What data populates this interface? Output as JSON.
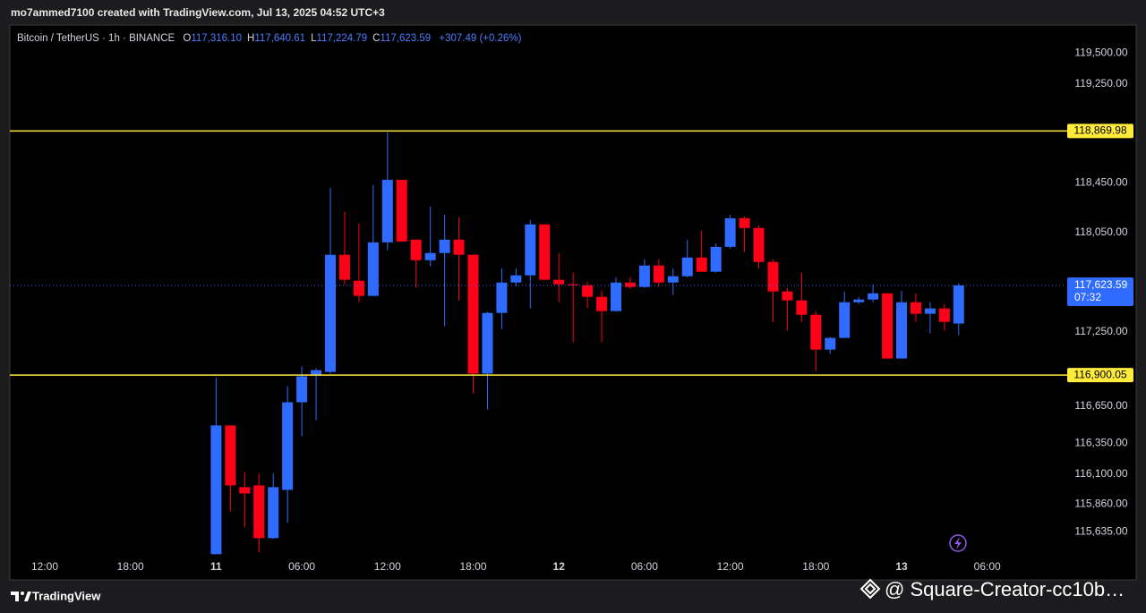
{
  "chart_data": {
    "type": "candlestick",
    "snapshot_caption": "mo7ammed7100 created with TradingView.com, Jul 13, 2025 04:52 UTC+3",
    "title": "Bitcoin / TetherUS · 1h · BINANCE",
    "ohlc_legend": [
      {
        "key": "O",
        "text": "117,316.10"
      },
      {
        "key": "H",
        "text": "117,640.61"
      },
      {
        "key": "L",
        "text": "117,224.79"
      },
      {
        "key": "C",
        "text": "117,623.59"
      }
    ],
    "change": "+307.49 (+0.26%)",
    "brand": "TradingView",
    "watermark": "@ Square-Creator-cc10b…",
    "up_color": "#2f6bff",
    "down_color": "#ff0019",
    "categories": [
      "12:00",
      null,
      null,
      null,
      null,
      null,
      "18:00",
      null,
      null,
      null,
      null,
      null,
      "11",
      null,
      null,
      null,
      null,
      null,
      "06:00",
      null,
      null,
      null,
      null,
      null,
      "12:00",
      null,
      null,
      null,
      null,
      null,
      "18:00",
      null,
      null,
      null,
      null,
      null,
      "12",
      null,
      null,
      null,
      null,
      null,
      "06:00",
      null,
      null,
      null,
      null,
      null,
      "12:00",
      null,
      null,
      null,
      null,
      null,
      "18:00",
      null,
      null,
      null,
      null,
      null,
      "13",
      null,
      null,
      null,
      null,
      null,
      "06:00"
    ],
    "open": [
      null,
      null,
      null,
      null,
      null,
      null,
      null,
      null,
      null,
      null,
      null,
      null,
      115455,
      116494,
      115996,
      116010,
      115585,
      115974,
      116681,
      116897,
      116926,
      117871,
      117661,
      117539,
      117971,
      118476,
      117993,
      117827,
      117885,
      117993,
      117871,
      116912,
      117402,
      117647,
      117705,
      118116,
      117669,
      117633,
      117625,
      117532,
      117416,
      117647,
      117611,
      117784,
      117647,
      117698,
      117849,
      117734,
      117935,
      118166,
      118087,
      117813,
      117575,
      117503,
      117387,
      117106,
      117200,
      117488,
      117510,
      117560,
      117034,
      117488,
      117395,
      117438,
      117316.1,
      null,
      null
    ],
    "high": [
      null,
      null,
      null,
      null,
      null,
      null,
      null,
      null,
      null,
      null,
      null,
      null,
      116876,
      116494,
      116119,
      116104,
      116104,
      116811,
      116969,
      116955,
      118411,
      118217,
      118123,
      118433,
      118858,
      118476,
      117993,
      118260,
      118195,
      118173,
      117871,
      117410,
      117762,
      117762,
      118152,
      118116,
      117885,
      117726,
      117654,
      117582,
      117690,
      117690,
      117834,
      117834,
      117762,
      117993,
      118065,
      117964,
      118195,
      118181,
      118109,
      117834,
      117604,
      117726,
      117416,
      117207,
      117575,
      117532,
      117633,
      117560,
      117582,
      117560,
      117488,
      117474,
      117640.61,
      null,
      null
    ],
    "low": [
      null,
      null,
      null,
      null,
      null,
      null,
      null,
      null,
      null,
      null,
      null,
      null,
      115455,
      115801,
      115672,
      115470,
      115578,
      115708,
      116407,
      116537,
      116912,
      117633,
      117488,
      117539,
      117907,
      117978,
      117604,
      117777,
      117294,
      117503,
      116753,
      116623,
      117272,
      117618,
      117438,
      117669,
      117488,
      117164,
      117438,
      117164,
      117416,
      117596,
      117604,
      117611,
      117546,
      117690,
      117734,
      117726,
      117921,
      117892,
      117762,
      117330,
      117258,
      117330,
      116933,
      117070,
      117200,
      117474,
      117488,
      117034,
      117034,
      117330,
      117236,
      117258,
      117224.79,
      null,
      null
    ],
    "close": [
      null,
      null,
      null,
      null,
      null,
      null,
      null,
      null,
      null,
      null,
      null,
      null,
      116494,
      116010,
      115945,
      115585,
      115996,
      116681,
      116890,
      116940,
      117871,
      117669,
      117539,
      117971,
      118476,
      117978,
      117827,
      117885,
      117993,
      117871,
      116912,
      117402,
      117647,
      117705,
      118116,
      117669,
      117633,
      117625,
      117532,
      117416,
      117647,
      117611,
      117784,
      117647,
      117698,
      117849,
      117734,
      117935,
      118166,
      118087,
      117813,
      117575,
      117503,
      117387,
      117106,
      117200,
      117488,
      117510,
      117560,
      117034,
      117488,
      117395,
      117438,
      117330,
      117623.59,
      null,
      null
    ],
    "ylim": [
      115450,
      119710
    ],
    "yticks": [
      {
        "value": 119500,
        "label": "119,500.00"
      },
      {
        "value": 119250,
        "label": "119,250.00"
      },
      {
        "value": 118450,
        "label": "118,450.00"
      },
      {
        "value": 118050,
        "label": "118,050.00"
      },
      {
        "value": 117250,
        "label": "117,250.00"
      },
      {
        "value": 116650,
        "label": "116,650.00"
      },
      {
        "value": 116350,
        "label": "116,350.00"
      },
      {
        "value": 116100,
        "label": "116,100.00"
      },
      {
        "value": 115860,
        "label": "115,860.00"
      },
      {
        "value": 115635,
        "label": "115,635.00"
      }
    ],
    "levels": [
      {
        "value": 118869.98,
        "label": "118,869.98",
        "color": "#ffeb3b"
      },
      {
        "value": 116900.05,
        "label": "116,900.05",
        "color": "#ffeb3b"
      }
    ],
    "last_price": {
      "value": 117623.59,
      "label": "117,623.59",
      "countdown": "07:32",
      "color": "#2f6bff"
    }
  }
}
